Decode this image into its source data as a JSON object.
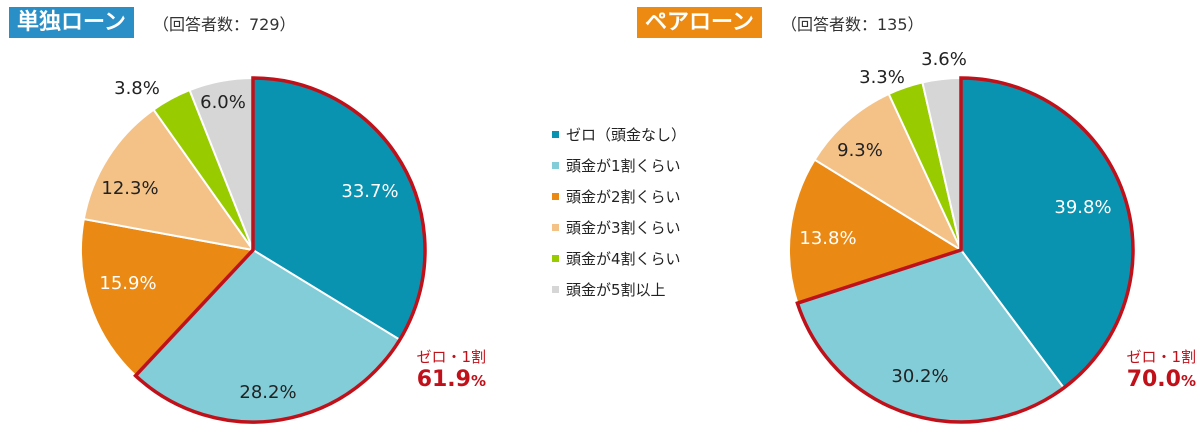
{
  "legend_items": [
    {
      "label": "ゼロ（頭金なし）",
      "color": "#0a93b0"
    },
    {
      "label": "頭金が1割くらい",
      "color": "#82cdd8"
    },
    {
      "label": "頭金が2割くらい",
      "color": "#ea8a14"
    },
    {
      "label": "頭金が3割くらい",
      "color": "#f4c287"
    },
    {
      "label": "頭金が4割くらい",
      "color": "#99cc00"
    },
    {
      "label": "頭金が5割以上",
      "color": "#d6d6d6"
    }
  ],
  "highlight_color": "#c0111a",
  "chart_data": [
    {
      "type": "pie",
      "title": "単独ローン",
      "title_color": "#2a8fc6",
      "subtitle": "（回答者数：729）",
      "categories": [
        "ゼロ（頭金なし）",
        "頭金が1割くらい",
        "頭金が2割くらい",
        "頭金が3割くらい",
        "頭金が4割くらい",
        "頭金が5割以上"
      ],
      "values": [
        33.7,
        28.2,
        15.9,
        12.3,
        3.8,
        6.0
      ],
      "value_labels": [
        "33.7%",
        "28.2%",
        "15.9%",
        "12.3%",
        "3.8%",
        "6.0%"
      ],
      "callout": {
        "label": "ゼロ・1割",
        "value": "61.9",
        "unit": "%"
      }
    },
    {
      "type": "pie",
      "title": "ペアローン",
      "title_color": "#ec8a12",
      "subtitle": "（回答者数：135）",
      "categories": [
        "ゼロ（頭金なし）",
        "頭金が1割くらい",
        "頭金が2割くらい",
        "頭金が3割くらい",
        "頭金が4割くらい",
        "頭金が5割以上"
      ],
      "values": [
        39.8,
        30.2,
        13.8,
        9.3,
        3.3,
        3.6
      ],
      "value_labels": [
        "39.8%",
        "30.2%",
        "13.8%",
        "9.3%",
        "3.3%",
        "3.6%"
      ],
      "callout": {
        "label": "ゼロ・1割",
        "value": "70.0",
        "unit": "%"
      }
    }
  ]
}
